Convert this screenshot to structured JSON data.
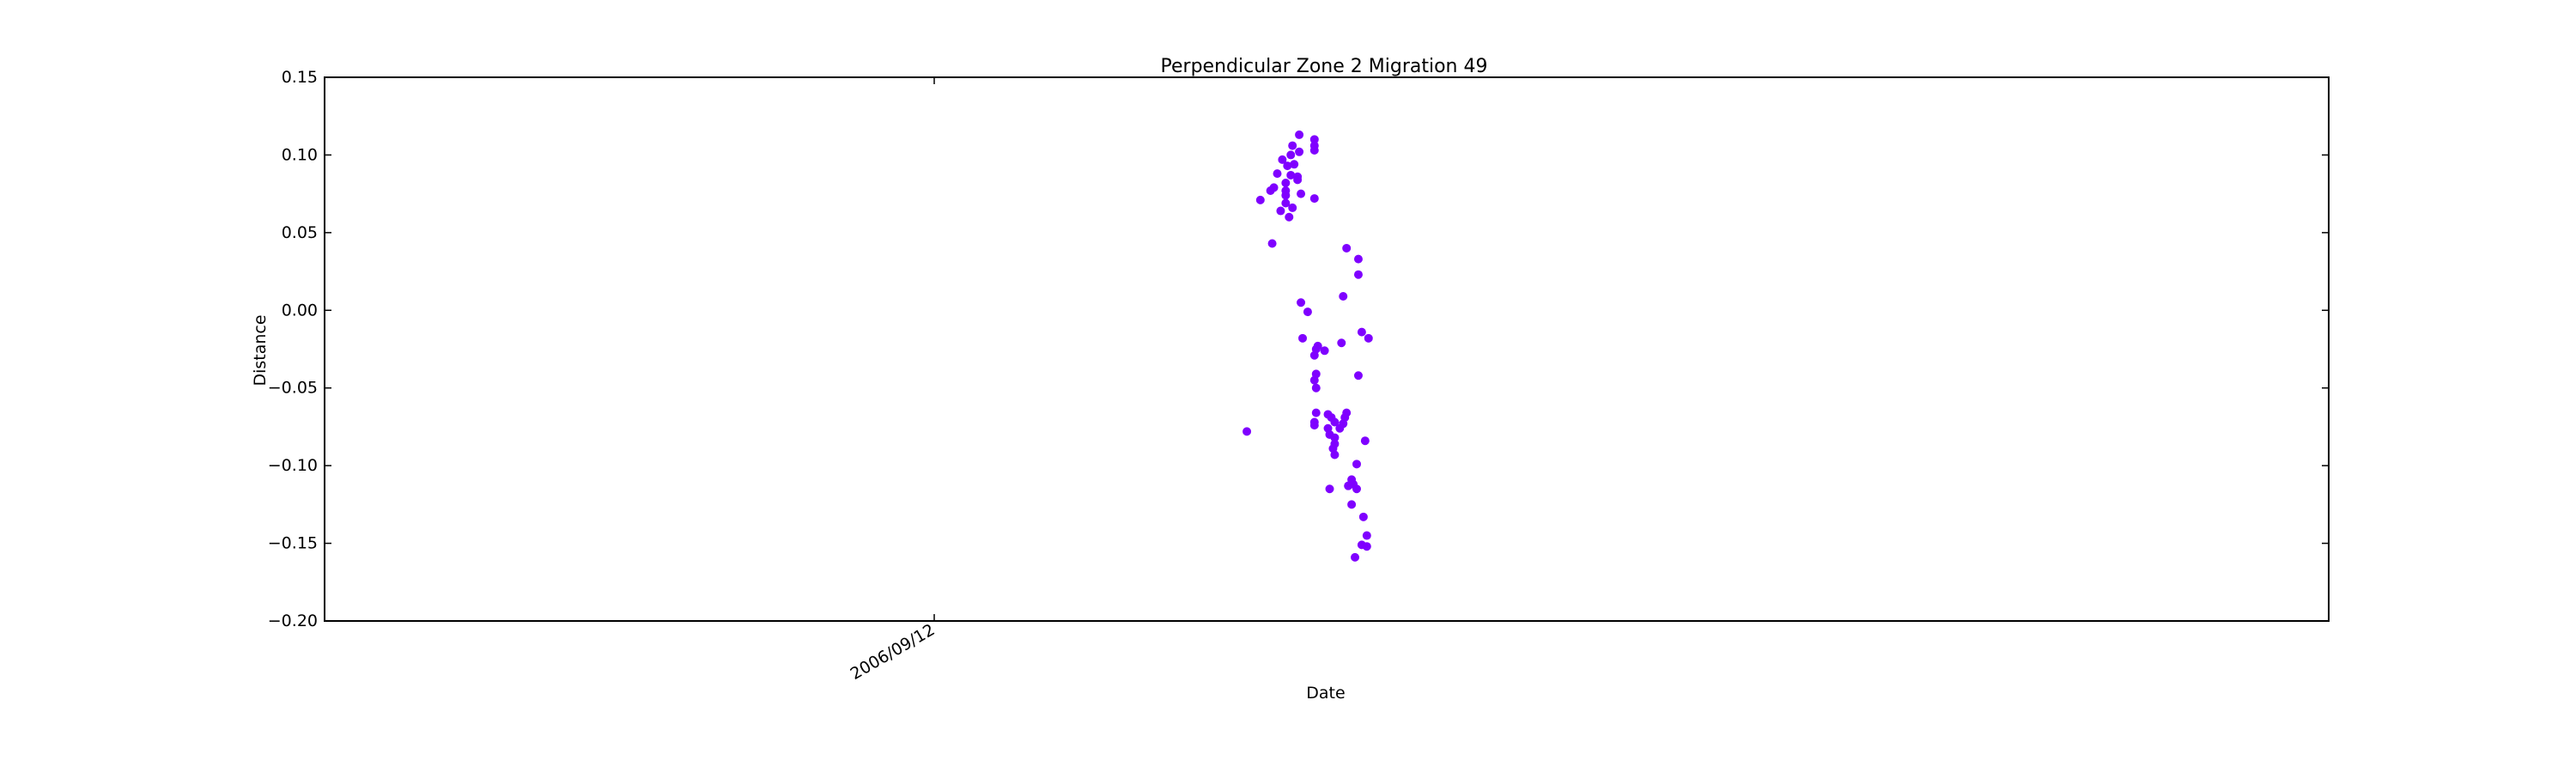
{
  "chart_data": {
    "type": "scatter",
    "title": "Perpendicular Zone 2 Migration 49",
    "xlabel": "Date",
    "ylabel": "Distance",
    "ylim": [
      -0.2,
      0.15
    ],
    "y_ticks": [
      "0.15",
      "0.10",
      "0.05",
      "0.00",
      "−0.05",
      "−0.10",
      "−0.15",
      "−0.20"
    ],
    "x_tick_labels": [
      "2006/09/12"
    ],
    "marker_color": "#7f00ff",
    "grid": false,
    "series": [
      {
        "points": [
          [
            3.16,
            0.113
          ],
          [
            3.25,
            0.11
          ],
          [
            3.25,
            0.106
          ],
          [
            3.25,
            0.103
          ],
          [
            3.12,
            0.106
          ],
          [
            3.16,
            0.102
          ],
          [
            3.11,
            0.1
          ],
          [
            3.06,
            0.097
          ],
          [
            3.09,
            0.093
          ],
          [
            3.13,
            0.094
          ],
          [
            3.03,
            0.088
          ],
          [
            3.11,
            0.087
          ],
          [
            3.15,
            0.086
          ],
          [
            3.08,
            0.082
          ],
          [
            3.15,
            0.084
          ],
          [
            2.99,
            0.077
          ],
          [
            3.01,
            0.079
          ],
          [
            3.08,
            0.077
          ],
          [
            3.08,
            0.074
          ],
          [
            3.17,
            0.075
          ],
          [
            2.93,
            0.071
          ],
          [
            3.08,
            0.069
          ],
          [
            3.25,
            0.072
          ],
          [
            3.05,
            0.064
          ],
          [
            3.12,
            0.066
          ],
          [
            3.1,
            0.06
          ],
          [
            3.0,
            0.043
          ],
          [
            3.44,
            0.04
          ],
          [
            3.51,
            0.033
          ],
          [
            3.51,
            0.023
          ],
          [
            3.42,
            0.009
          ],
          [
            3.17,
            0.005
          ],
          [
            3.21,
            -0.001
          ],
          [
            3.18,
            -0.018
          ],
          [
            3.41,
            -0.021
          ],
          [
            3.27,
            -0.023
          ],
          [
            3.26,
            -0.025
          ],
          [
            3.25,
            -0.029
          ],
          [
            3.31,
            -0.026
          ],
          [
            3.53,
            -0.014
          ],
          [
            3.57,
            -0.018
          ],
          [
            3.51,
            -0.042
          ],
          [
            3.26,
            -0.041
          ],
          [
            3.25,
            -0.045
          ],
          [
            3.26,
            -0.05
          ],
          [
            3.26,
            -0.066
          ],
          [
            3.44,
            -0.066
          ],
          [
            3.35,
            -0.069
          ],
          [
            3.33,
            -0.067
          ],
          [
            3.25,
            -0.072
          ],
          [
            3.25,
            -0.074
          ],
          [
            3.43,
            -0.069
          ],
          [
            3.42,
            -0.073
          ],
          [
            3.37,
            -0.072
          ],
          [
            3.4,
            -0.076
          ],
          [
            3.33,
            -0.076
          ],
          [
            3.34,
            -0.08
          ],
          [
            3.37,
            -0.082
          ],
          [
            3.37,
            -0.086
          ],
          [
            3.36,
            -0.089
          ],
          [
            3.37,
            -0.093
          ],
          [
            2.85,
            -0.078
          ],
          [
            3.55,
            -0.084
          ],
          [
            3.5,
            -0.099
          ],
          [
            3.47,
            -0.109
          ],
          [
            3.45,
            -0.113
          ],
          [
            3.48,
            -0.112
          ],
          [
            3.5,
            -0.115
          ],
          [
            3.34,
            -0.115
          ],
          [
            3.47,
            -0.125
          ],
          [
            3.54,
            -0.133
          ],
          [
            3.56,
            -0.145
          ],
          [
            3.53,
            -0.151
          ],
          [
            3.56,
            -0.152
          ],
          [
            3.49,
            -0.159
          ]
        ]
      }
    ]
  }
}
